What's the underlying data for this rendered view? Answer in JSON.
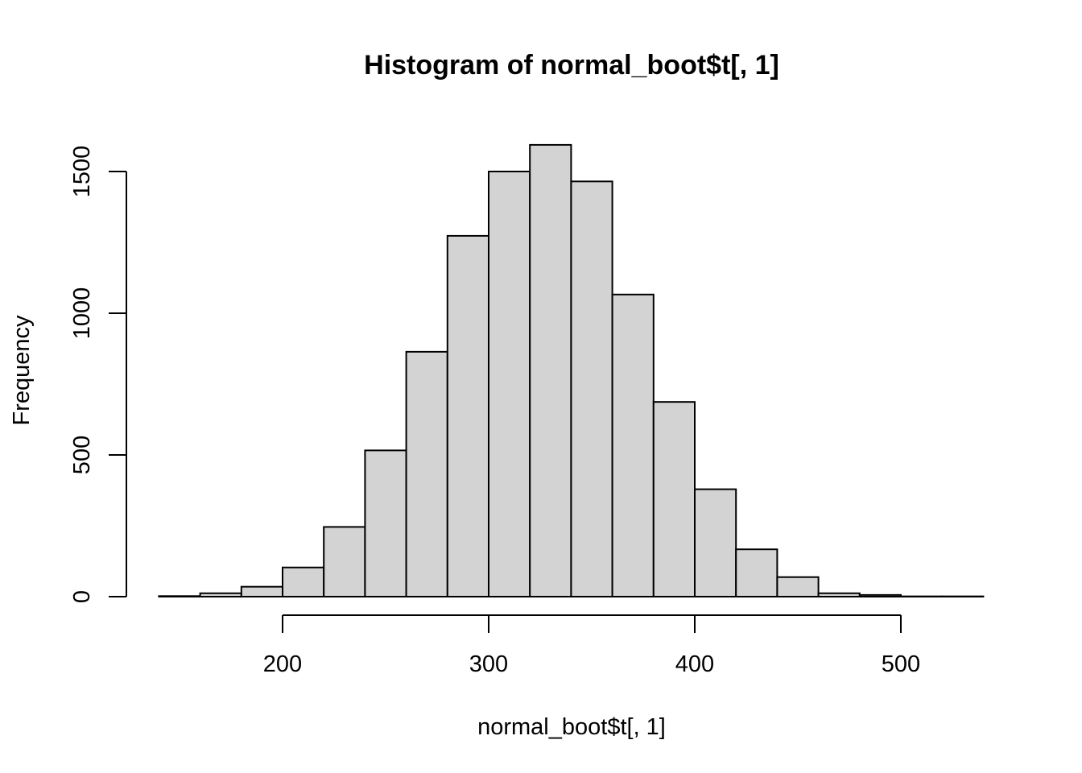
{
  "chart_data": {
    "type": "bar",
    "title": "Histogram of normal_boot$t[, 1]",
    "xlabel": "normal_boot$t[, 1]",
    "ylabel": "Frequency",
    "bin_edges": [
      140,
      160,
      180,
      200,
      220,
      240,
      260,
      280,
      300,
      320,
      340,
      360,
      380,
      400,
      420,
      440,
      460,
      480,
      500,
      520,
      540
    ],
    "values": [
      2,
      12,
      35,
      103,
      246,
      516,
      864,
      1273,
      1500,
      1594,
      1465,
      1066,
      687,
      379,
      167,
      69,
      12,
      6,
      1,
      1
    ],
    "x_ticks": [
      200,
      300,
      400,
      500
    ],
    "y_ticks": [
      0,
      500,
      1000,
      1500
    ],
    "bar_color": "#d3d3d3",
    "grid": false,
    "legend": "none"
  }
}
